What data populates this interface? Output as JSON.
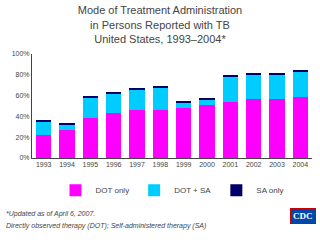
{
  "chart_data": {
    "type": "bar",
    "stacked": true,
    "title": "Mode of Treatment Administration\nin Persons Reported with TB\nUnited States, 1993–2004*",
    "categories": [
      "1993",
      "1994",
      "1995",
      "1996",
      "1997",
      "1998",
      "1999",
      "2000",
      "2001",
      "2002",
      "2003",
      "2004"
    ],
    "series": [
      {
        "name": "DOT only",
        "color": "#FF00FF",
        "values": [
          22,
          27,
          38,
          43,
          46,
          46,
          48,
          51,
          54,
          57,
          57,
          59
        ]
      },
      {
        "name": "DOT + SA",
        "color": "#00CCFF",
        "values": [
          13,
          5,
          20,
          19,
          20,
          22,
          5,
          5,
          24,
          23,
          23,
          24
        ]
      },
      {
        "name": "SA only",
        "color": "#000066",
        "values": [
          2,
          1,
          1,
          1,
          1,
          1,
          1,
          1,
          1,
          1,
          1,
          1
        ]
      }
    ],
    "ylim": [
      0,
      100
    ],
    "yticks": [
      {
        "value": 0,
        "label": "0%"
      },
      {
        "value": 20,
        "label": "20%"
      },
      {
        "value": 40,
        "label": "40%"
      },
      {
        "value": 60,
        "label": "60%"
      },
      {
        "value": 80,
        "label": "80%"
      },
      {
        "value": 100,
        "label": "100%"
      }
    ],
    "grid": false,
    "legend": "bottom",
    "data_labels": false,
    "annotations": [
      "*Updated as of April 6, 2007.",
      "Directly observed therapy (DOT); Self-administered therapy (SA)",
      "CDC"
    ]
  }
}
